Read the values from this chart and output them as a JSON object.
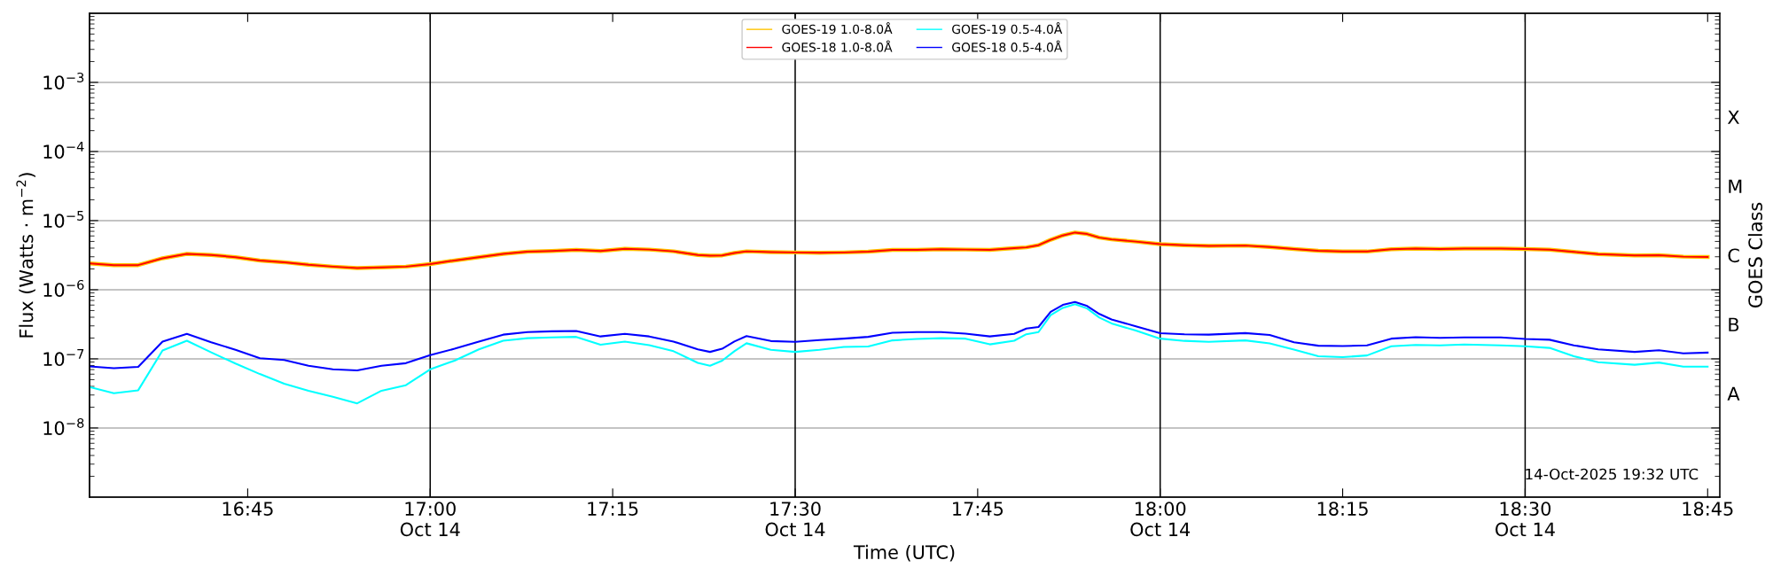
{
  "chart_data": {
    "type": "line",
    "xlabel": "Time (UTC)",
    "ylabel": "Flux (Watts · m$^{−2}$)",
    "y2label": "GOES Class",
    "x": [
      "2025-10-14T16:32",
      "2025-10-14T16:34",
      "2025-10-14T16:36",
      "2025-10-14T16:38",
      "2025-10-14T16:40",
      "2025-10-14T16:42",
      "2025-10-14T16:44",
      "2025-10-14T16:46",
      "2025-10-14T16:48",
      "2025-10-14T16:50",
      "2025-10-14T16:52",
      "2025-10-14T16:54",
      "2025-10-14T16:56",
      "2025-10-14T16:58",
      "2025-10-14T17:00",
      "2025-10-14T17:02",
      "2025-10-14T17:04",
      "2025-10-14T17:06",
      "2025-10-14T17:08",
      "2025-10-14T17:10",
      "2025-10-14T17:12",
      "2025-10-14T17:14",
      "2025-10-14T17:16",
      "2025-10-14T17:18",
      "2025-10-14T17:20",
      "2025-10-14T17:22",
      "2025-10-14T17:23",
      "2025-10-14T17:24",
      "2025-10-14T17:25",
      "2025-10-14T17:26",
      "2025-10-14T17:28",
      "2025-10-14T17:30",
      "2025-10-14T17:32",
      "2025-10-14T17:34",
      "2025-10-14T17:36",
      "2025-10-14T17:38",
      "2025-10-14T17:40",
      "2025-10-14T17:42",
      "2025-10-14T17:44",
      "2025-10-14T17:46",
      "2025-10-14T17:48",
      "2025-10-14T17:49",
      "2025-10-14T17:50",
      "2025-10-14T17:51",
      "2025-10-14T17:52",
      "2025-10-14T17:53",
      "2025-10-14T17:54",
      "2025-10-14T17:55",
      "2025-10-14T17:56",
      "2025-10-14T17:58",
      "2025-10-14T18:00",
      "2025-10-14T18:02",
      "2025-10-14T18:04",
      "2025-10-14T18:07",
      "2025-10-14T18:09",
      "2025-10-14T18:11",
      "2025-10-14T18:13",
      "2025-10-14T18:15",
      "2025-10-14T18:17",
      "2025-10-14T18:19",
      "2025-10-14T18:21",
      "2025-10-14T18:23",
      "2025-10-14T18:25",
      "2025-10-14T18:28",
      "2025-10-14T18:30",
      "2025-10-14T18:32",
      "2025-10-14T18:34",
      "2025-10-14T18:36",
      "2025-10-14T18:39",
      "2025-10-14T18:41",
      "2025-10-14T18:43",
      "2025-10-14T18:45"
    ],
    "series": [
      {
        "name": "GOES-19 1.0-8.0Å",
        "color": "#ffc400",
        "values": [
          2.41e-06,
          2.27e-06,
          2.27e-06,
          2.85e-06,
          3.3e-06,
          3.18e-06,
          2.96e-06,
          2.65e-06,
          2.5e-06,
          2.3e-06,
          2.16e-06,
          2.06e-06,
          2.11e-06,
          2.16e-06,
          2.35e-06,
          2.65e-06,
          2.96e-06,
          3.3e-06,
          3.55e-06,
          3.63e-06,
          3.77e-06,
          3.63e-06,
          3.91e-06,
          3.81e-06,
          3.59e-06,
          3.18e-06,
          3.11e-06,
          3.14e-06,
          3.4e-06,
          3.59e-06,
          3.51e-06,
          3.46e-06,
          3.42e-06,
          3.46e-06,
          3.55e-06,
          3.77e-06,
          3.77e-06,
          3.86e-06,
          3.81e-06,
          3.77e-06,
          4e-06,
          4.1e-06,
          4.41e-06,
          5.28e-06,
          6.1e-06,
          6.72e-06,
          6.4e-06,
          5.68e-06,
          5.35e-06,
          4.97e-06,
          4.57e-06,
          4.4e-06,
          4.3e-06,
          4.35e-06,
          4.14e-06,
          3.89e-06,
          3.66e-06,
          3.57e-06,
          3.57e-06,
          3.85e-06,
          3.94e-06,
          3.89e-06,
          3.94e-06,
          3.94e-06,
          3.89e-06,
          3.8e-06,
          3.53e-06,
          3.28e-06,
          3.13e-06,
          3.16e-06,
          3.01e-06,
          2.98e-06
        ]
      },
      {
        "name": "GOES-18 1.0-8.0Å",
        "color": "#ff0000",
        "values": [
          2.41e-06,
          2.27e-06,
          2.27e-06,
          2.85e-06,
          3.3e-06,
          3.18e-06,
          2.96e-06,
          2.65e-06,
          2.5e-06,
          2.3e-06,
          2.16e-06,
          2.06e-06,
          2.11e-06,
          2.16e-06,
          2.35e-06,
          2.65e-06,
          2.96e-06,
          3.3e-06,
          3.55e-06,
          3.63e-06,
          3.77e-06,
          3.63e-06,
          3.91e-06,
          3.81e-06,
          3.59e-06,
          3.18e-06,
          3.11e-06,
          3.14e-06,
          3.4e-06,
          3.59e-06,
          3.51e-06,
          3.46e-06,
          3.42e-06,
          3.46e-06,
          3.55e-06,
          3.77e-06,
          3.77e-06,
          3.86e-06,
          3.81e-06,
          3.77e-06,
          4e-06,
          4.1e-06,
          4.41e-06,
          5.28e-06,
          6.1e-06,
          6.72e-06,
          6.4e-06,
          5.68e-06,
          5.35e-06,
          4.97e-06,
          4.57e-06,
          4.4e-06,
          4.3e-06,
          4.35e-06,
          4.14e-06,
          3.89e-06,
          3.66e-06,
          3.57e-06,
          3.57e-06,
          3.85e-06,
          3.94e-06,
          3.89e-06,
          3.94e-06,
          3.94e-06,
          3.89e-06,
          3.8e-06,
          3.53e-06,
          3.28e-06,
          3.13e-06,
          3.16e-06,
          3.01e-06,
          2.98e-06
        ]
      },
      {
        "name": "GOES-19 0.5-4.0Å",
        "color": "#00ffff",
        "values": [
          3.91e-08,
          3.18e-08,
          3.51e-08,
          1.32e-07,
          1.83e-07,
          1.24e-07,
          8.55e-08,
          6.03e-08,
          4.36e-08,
          3.46e-08,
          2.82e-08,
          2.27e-08,
          3.46e-08,
          4.15e-08,
          7.05e-08,
          9.42e-08,
          1.37e-07,
          1.83e-07,
          1.99e-07,
          2.04e-07,
          2.08e-07,
          1.6e-07,
          1.78e-07,
          1.58e-07,
          1.29e-07,
          8.75e-08,
          7.95e-08,
          9.42e-08,
          1.29e-07,
          1.68e-07,
          1.35e-07,
          1.26e-07,
          1.35e-07,
          1.49e-07,
          1.51e-07,
          1.85e-07,
          1.94e-07,
          1.99e-07,
          1.96e-07,
          1.62e-07,
          1.83e-07,
          2.27e-07,
          2.44e-07,
          4.3e-07,
          5.47e-07,
          6.18e-07,
          5.35e-07,
          3.95e-07,
          3.26e-07,
          2.56e-07,
          1.96e-07,
          1.82e-07,
          1.76e-07,
          1.85e-07,
          1.67e-07,
          1.36e-07,
          1.09e-07,
          1.06e-07,
          1.12e-07,
          1.52e-07,
          1.59e-07,
          1.57e-07,
          1.61e-07,
          1.57e-07,
          1.52e-07,
          1.44e-07,
          1.09e-07,
          8.95e-08,
          8.22e-08,
          8.84e-08,
          7.73e-08,
          7.73e-08
        ]
      },
      {
        "name": "GOES-18 0.5-4.0Å",
        "color": "#0000ff",
        "values": [
          7.76e-08,
          7.31e-08,
          7.67e-08,
          1.78e-07,
          2.3e-07,
          1.74e-07,
          1.35e-07,
          1.02e-07,
          9.64e-08,
          7.96e-08,
          7.05e-08,
          6.8e-08,
          7.96e-08,
          8.65e-08,
          1.13e-07,
          1.4e-07,
          1.78e-07,
          2.24e-07,
          2.44e-07,
          2.5e-07,
          2.53e-07,
          2.11e-07,
          2.3e-07,
          2.11e-07,
          1.78e-07,
          1.37e-07,
          1.26e-07,
          1.4e-07,
          1.78e-07,
          2.14e-07,
          1.81e-07,
          1.76e-07,
          1.87e-07,
          1.96e-07,
          2.08e-07,
          2.38e-07,
          2.44e-07,
          2.44e-07,
          2.32e-07,
          2.11e-07,
          2.3e-07,
          2.75e-07,
          2.89e-07,
          4.8e-07,
          6.03e-07,
          6.64e-07,
          5.81e-07,
          4.46e-07,
          3.72e-07,
          2.96e-07,
          2.35e-07,
          2.27e-07,
          2.24e-07,
          2.36e-07,
          2.22e-07,
          1.74e-07,
          1.55e-07,
          1.53e-07,
          1.57e-07,
          1.96e-07,
          2.06e-07,
          2.01e-07,
          2.04e-07,
          2.04e-07,
          1.94e-07,
          1.89e-07,
          1.57e-07,
          1.37e-07,
          1.26e-07,
          1.33e-07,
          1.2e-07,
          1.23e-07
        ]
      }
    ],
    "log": true,
    "grid": "y",
    "legend": "top",
    "line_style": "solid",
    "xlim": [
      "2025-10-14T16:32",
      "2025-10-14T18:46"
    ],
    "xticks": [
      {
        "value": "2025-10-14T16:45",
        "label": "16:45"
      },
      {
        "value": "2025-10-14T17:00",
        "label": "17:00\nOct 14"
      },
      {
        "value": "2025-10-14T17:15",
        "label": "17:15"
      },
      {
        "value": "2025-10-14T17:30",
        "label": "17:30\nOct 14"
      },
      {
        "value": "2025-10-14T17:45",
        "label": "17:45"
      },
      {
        "value": "2025-10-14T18:00",
        "label": "18:00\nOct 14"
      },
      {
        "value": "2025-10-14T18:15",
        "label": "18:15"
      },
      {
        "value": "2025-10-14T18:30",
        "label": "18:30\nOct 14"
      },
      {
        "value": "2025-10-14T18:45",
        "label": "18:45"
      }
    ],
    "ylim": [
      1e-09,
      0.01
    ],
    "yticks": [
      {
        "value": 1e-08,
        "label": "10$^{−8}$"
      },
      {
        "value": 1e-07,
        "label": "10$^{−7}$"
      },
      {
        "value": 1e-06,
        "label": "10$^{−6}$"
      },
      {
        "value": 1e-05,
        "label": "10$^{−5}$"
      },
      {
        "value": 0.0001,
        "label": "10$^{−4}$"
      },
      {
        "value": 0.001,
        "label": "10$^{−3}$"
      }
    ],
    "y2_categories": [
      "X",
      "M",
      "C",
      "B",
      "A"
    ],
    "ref_lines": [
      {
        "axis": "x",
        "value": "2025-10-14T17:00",
        "color": "#000000"
      },
      {
        "axis": "x",
        "value": "2025-10-14T17:30",
        "color": "#000000"
      },
      {
        "axis": "x",
        "value": "2025-10-14T18:00",
        "color": "#000000"
      },
      {
        "axis": "x",
        "value": "2025-10-14T18:30",
        "color": "#000000"
      }
    ],
    "annotations": [
      "14-Oct-2025 19:32 UTC"
    ]
  }
}
